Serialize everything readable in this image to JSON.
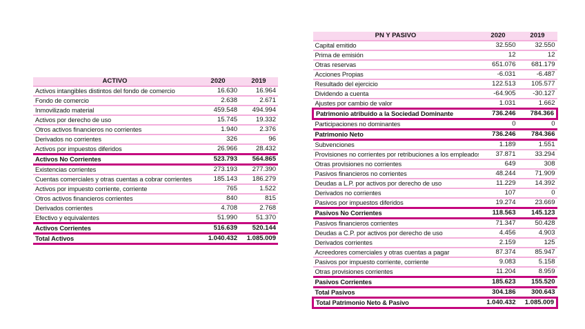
{
  "colors": {
    "accent_magenta": "#C4067E",
    "row_separator_pink": "#F3AEDB",
    "header_background": "#F9D8EE",
    "page_background": "#FFFFFF"
  },
  "activo_table": {
    "header": {
      "label": "ACTIVO",
      "col_2020": "2020",
      "col_2019": "2019"
    },
    "rows": [
      {
        "label": "Activos intangibles distintos del fondo de comercio",
        "y2020": "16.630",
        "y2019": "16.964",
        "style": "normal"
      },
      {
        "label": "Fondo de comercio",
        "y2020": "2.638",
        "y2019": "2.671",
        "style": "normal"
      },
      {
        "label": "Inmovilizado material",
        "y2020": "459.548",
        "y2019": "494.994",
        "style": "normal"
      },
      {
        "label": "Activos por derecho de uso",
        "y2020": "15.745",
        "y2019": "19.332",
        "style": "normal"
      },
      {
        "label": "Otros activos financieros no corrientes",
        "y2020": "1.940",
        "y2019": "2.376",
        "style": "normal"
      },
      {
        "label": "Derivados no corrientes",
        "y2020": "326",
        "y2019": "96",
        "style": "normal"
      },
      {
        "label": "Activos por impuestos diferidos",
        "y2020": "26.966",
        "y2019": "28.432",
        "style": "normal"
      },
      {
        "label": "Activos No Corrientes",
        "y2020": "523.793",
        "y2019": "564.865",
        "style": "bold"
      },
      {
        "label": "Existencias corrientes",
        "y2020": "273.193",
        "y2019": "277.390",
        "style": "normal"
      },
      {
        "label": "Cuentas comerciales y otras cuentas a cobrar corrientes",
        "y2020": "185.143",
        "y2019": "186.279",
        "style": "normal"
      },
      {
        "label": "Activos por impuesto corriente, corriente",
        "y2020": "765",
        "y2019": "1.522",
        "style": "normal"
      },
      {
        "label": "Otros activos financieros corrientes",
        "y2020": "840",
        "y2019": "815",
        "style": "normal"
      },
      {
        "label": "Derivados corrientes",
        "y2020": "4.708",
        "y2019": "2.768",
        "style": "normal"
      },
      {
        "label": "Efectivo y equivalentes",
        "y2020": "51.990",
        "y2019": "51.370",
        "style": "normal"
      },
      {
        "label": "Activos Corrientes",
        "y2020": "516.639",
        "y2019": "520.144",
        "style": "bold"
      },
      {
        "label": "Total Activos",
        "y2020": "1.040.432",
        "y2019": "1.085.009",
        "style": "bold"
      }
    ]
  },
  "pasivo_table": {
    "header": {
      "label": "PN Y PASIVO",
      "col_2020": "2020",
      "col_2019": "2019"
    },
    "rows": [
      {
        "label": "Capital emitido",
        "y2020": "32.550",
        "y2019": "32.550",
        "style": "normal"
      },
      {
        "label": "Prima de emisión",
        "y2020": "12",
        "y2019": "12",
        "style": "normal"
      },
      {
        "label": "Otras reservas",
        "y2020": "651.076",
        "y2019": "681.179",
        "style": "normal"
      },
      {
        "label": "Acciones Propias",
        "y2020": "-6.031",
        "y2019": "-6.487",
        "style": "normal"
      },
      {
        "label": "Resultado del ejercicio",
        "y2020": "122.513",
        "y2019": "105.577",
        "style": "normal"
      },
      {
        "label": "Dividendo a cuenta",
        "y2020": "-64.905",
        "y2019": "-30.127",
        "style": "normal"
      },
      {
        "label": "Ajustes por cambio de valor",
        "y2020": "1.031",
        "y2019": "1.662",
        "style": "normal"
      },
      {
        "label": "Patrimonio atribuido a la Sociedad Dominante",
        "y2020": "736.246",
        "y2019": "784.366",
        "style": "boxed"
      },
      {
        "label": "Participaciones no dominantes",
        "y2020": "0",
        "y2019": "0",
        "style": "normal"
      },
      {
        "label": "Patrimonio Neto",
        "y2020": "736.246",
        "y2019": "784.366",
        "style": "bold"
      },
      {
        "label": "Subvenciones",
        "y2020": "1.189",
        "y2019": "1.551",
        "style": "normal"
      },
      {
        "label": "Provisiones no corrientes por retribuciones a los empleados",
        "y2020": "37.871",
        "y2019": "33.294",
        "style": "normal"
      },
      {
        "label": "Otras provisiones no corrientes",
        "y2020": "649",
        "y2019": "308",
        "style": "normal"
      },
      {
        "label": "Pasivos financieros no corrientes",
        "y2020": "48.244",
        "y2019": "71.909",
        "style": "normal"
      },
      {
        "label": "Deudas a L.P. por activos por derecho de uso",
        "y2020": "11.229",
        "y2019": "14.392",
        "style": "normal"
      },
      {
        "label": "Derivados no corrientes",
        "y2020": "107",
        "y2019": "0",
        "style": "normal"
      },
      {
        "label": "Pasivos por impuestos diferidos",
        "y2020": "19.274",
        "y2019": "23.669",
        "style": "normal"
      },
      {
        "label": "Pasivos No Corrientes",
        "y2020": "118.563",
        "y2019": "145.123",
        "style": "bold"
      },
      {
        "label": "Pasivos financieros corrientes",
        "y2020": "71.347",
        "y2019": "50.428",
        "style": "normal"
      },
      {
        "label": "Deudas a C.P. por activos por derecho de uso",
        "y2020": "4.456",
        "y2019": "4.903",
        "style": "normal"
      },
      {
        "label": "Derivados corrientes",
        "y2020": "2.159",
        "y2019": "125",
        "style": "normal"
      },
      {
        "label": "Acreedores comerciales y otras cuentas a pagar",
        "y2020": "87.374",
        "y2019": "85.947",
        "style": "normal"
      },
      {
        "label": "Pasivos por impuesto corriente, corriente",
        "y2020": "9.083",
        "y2019": "5.158",
        "style": "normal"
      },
      {
        "label": "Otras provisiones corrientes",
        "y2020": "11.204",
        "y2019": "8.959",
        "style": "normal"
      },
      {
        "label": "Pasivos Corrientes",
        "y2020": "185.623",
        "y2019": "155.520",
        "style": "bold"
      },
      {
        "label": "Total Pasivos",
        "y2020": "304.186",
        "y2019": "300.643",
        "style": "bold"
      },
      {
        "label": "Total Patrimonio Neto & Pasivo",
        "y2020": "1.040.432",
        "y2019": "1.085.009",
        "style": "boxed"
      }
    ]
  }
}
